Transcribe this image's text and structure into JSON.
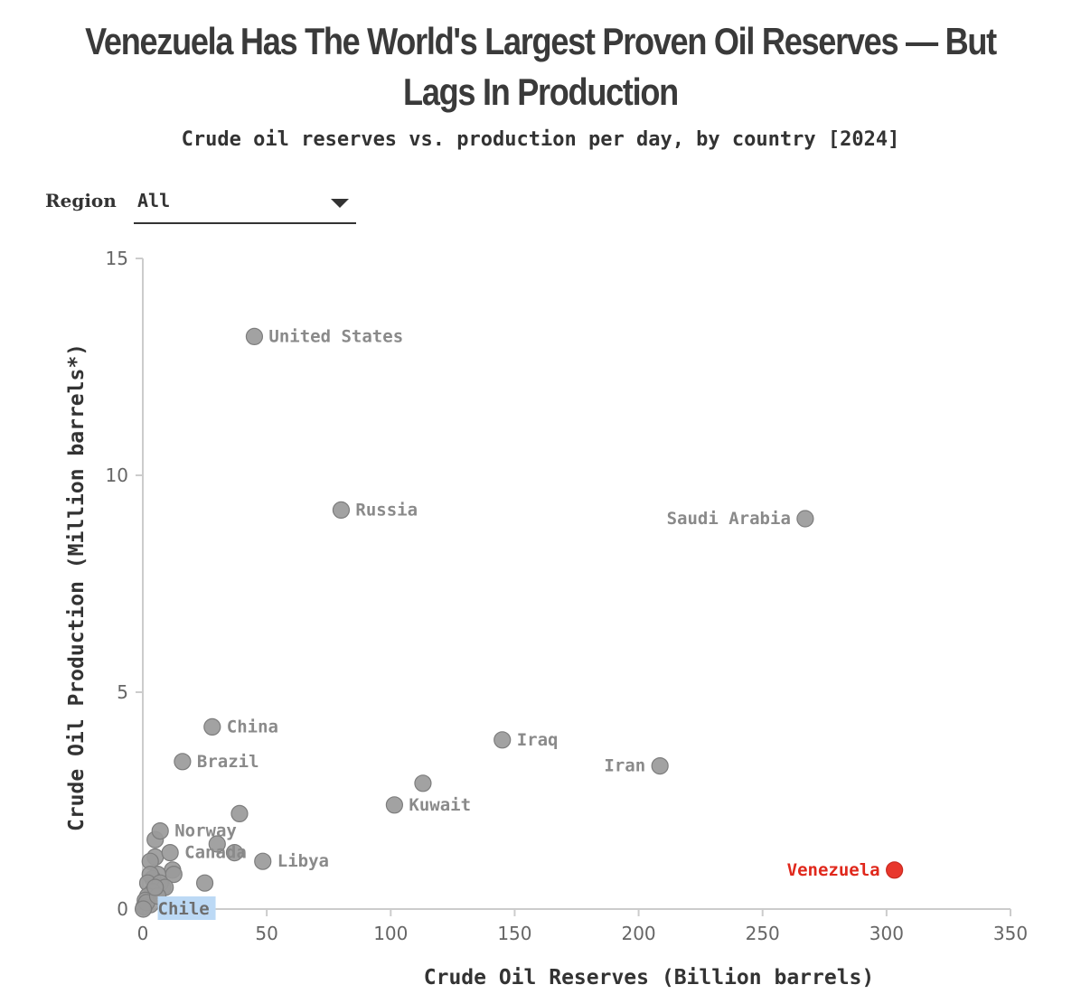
{
  "title": "Venezuela Has The World's Largest Proven Oil Reserves — But Lags In Production",
  "subtitle": "Crude oil reserves vs. production per day, by country [2024]",
  "filter": {
    "label": "Region",
    "value": "All",
    "icon": "chevron-down-icon"
  },
  "colors": {
    "point": "#9a9a9a",
    "point_stroke": "#7d7d7d",
    "highlight": "#e8372c",
    "highlight_label": "#e0281c",
    "selection_box": "#bcd9f5",
    "axis": "#cccccc"
  },
  "chart_data": {
    "type": "scatter",
    "title": "Venezuela Has The World's Largest Proven Oil Reserves — But Lags In Production",
    "subtitle": "Crude oil reserves vs. production per day, by country [2024]",
    "xlabel": "Crude Oil Reserves (Billion barrels)",
    "ylabel": "Crude Oil Production (Million barrels*)",
    "xlim": [
      0,
      350
    ],
    "ylim": [
      0,
      15
    ],
    "xticks": [
      0,
      50,
      100,
      150,
      200,
      250,
      300,
      350
    ],
    "yticks": [
      0,
      5,
      10,
      15
    ],
    "grid": false,
    "highlight": "Venezuela",
    "points": [
      {
        "label": "United States",
        "x": 45,
        "y": 13.2,
        "label_side": "right"
      },
      {
        "label": "Russia",
        "x": 80,
        "y": 9.2,
        "label_side": "right"
      },
      {
        "label": "Saudi Arabia",
        "x": 267.2,
        "y": 9.0,
        "label_side": "left"
      },
      {
        "label": "China",
        "x": 28,
        "y": 4.2,
        "label_side": "right"
      },
      {
        "label": "Brazil",
        "x": 16,
        "y": 3.4,
        "label_side": "right"
      },
      {
        "label": "Iraq",
        "x": 145,
        "y": 3.9,
        "label_side": "right"
      },
      {
        "label": "Iran",
        "x": 208.6,
        "y": 3.3,
        "label_side": "left"
      },
      {
        "label": "Kuwait",
        "x": 101.5,
        "y": 2.4,
        "label_side": "right"
      },
      {
        "label": "Norway",
        "x": 7,
        "y": 1.8,
        "label_side": "right"
      },
      {
        "label": "Canada",
        "x": 11,
        "y": 1.3,
        "label_side": "right"
      },
      {
        "label": "Libya",
        "x": 48.4,
        "y": 1.1,
        "label_side": "right"
      },
      {
        "label": "Venezuela",
        "x": 303.2,
        "y": 0.9,
        "label_side": "left"
      },
      {
        "label": "Chile",
        "x": 0.2,
        "y": 0.0,
        "label_side": "right",
        "selected": true
      },
      {
        "label": "",
        "x": 113,
        "y": 2.9
      },
      {
        "label": "",
        "x": 39,
        "y": 2.2
      },
      {
        "label": "",
        "x": 30,
        "y": 1.5
      },
      {
        "label": "",
        "x": 37,
        "y": 1.3
      },
      {
        "label": "",
        "x": 25,
        "y": 0.6
      },
      {
        "label": "",
        "x": 5,
        "y": 1.6
      },
      {
        "label": "",
        "x": 5,
        "y": 1.2
      },
      {
        "label": "",
        "x": 3,
        "y": 1.1
      },
      {
        "label": "",
        "x": 12,
        "y": 0.9
      },
      {
        "label": "",
        "x": 12.5,
        "y": 0.8
      },
      {
        "label": "",
        "x": 8,
        "y": 0.5
      },
      {
        "label": "",
        "x": 6,
        "y": 0.8
      },
      {
        "label": "",
        "x": 4,
        "y": 0.7
      },
      {
        "label": "",
        "x": 3,
        "y": 0.8
      },
      {
        "label": "",
        "x": 2,
        "y": 0.6
      },
      {
        "label": "",
        "x": 7,
        "y": 0.6
      },
      {
        "label": "",
        "x": 9,
        "y": 0.5
      },
      {
        "label": "",
        "x": 4,
        "y": 0.4
      },
      {
        "label": "",
        "x": 2,
        "y": 0.3
      },
      {
        "label": "",
        "x": 1,
        "y": 0.2
      },
      {
        "label": "",
        "x": 3,
        "y": 0.1
      },
      {
        "label": "",
        "x": 0.5,
        "y": 0.05
      },
      {
        "label": "",
        "x": 1.5,
        "y": 0.15
      },
      {
        "label": "",
        "x": 6,
        "y": 0.3
      },
      {
        "label": "",
        "x": 5,
        "y": 0.5
      }
    ]
  }
}
